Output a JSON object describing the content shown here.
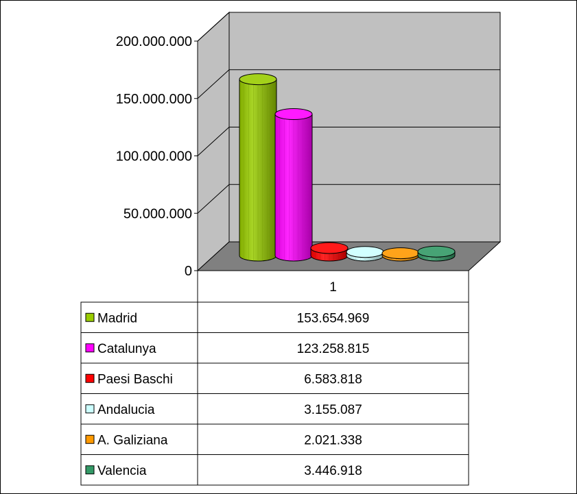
{
  "chart_data": {
    "type": "bar",
    "title": "",
    "xlabel": "",
    "ylabel": "",
    "ylim": [
      0,
      200000000
    ],
    "y_ticks": [
      "0",
      "50.000.000",
      "100.000.000",
      "150.000.000",
      "200.000.000"
    ],
    "categories": [
      "1"
    ],
    "series": [
      {
        "name": "Madrid",
        "values": [
          153654969
        ],
        "label": "153.654.969",
        "color": "#99cc00"
      },
      {
        "name": "Catalunya",
        "values": [
          123258815
        ],
        "label": "123.258.815",
        "color": "#ff00ff"
      },
      {
        "name": "Paesi Baschi",
        "values": [
          6583818
        ],
        "label": "6.583.818",
        "color": "#ff0000"
      },
      {
        "name": "Andalucia",
        "values": [
          3155087
        ],
        "label": "3.155.087",
        "color": "#ccffff"
      },
      {
        "name": "A. Galiziana",
        "values": [
          2021338
        ],
        "label": "2.021.338",
        "color": "#ff9900"
      },
      {
        "name": "Valencia",
        "values": [
          3446918
        ],
        "label": "3.446.918",
        "color": "#339966"
      }
    ],
    "grid": true,
    "legend": "data-table",
    "colors": {
      "wall": "#c0c0c0",
      "floor": "#808080",
      "gridline": "#000000"
    }
  }
}
